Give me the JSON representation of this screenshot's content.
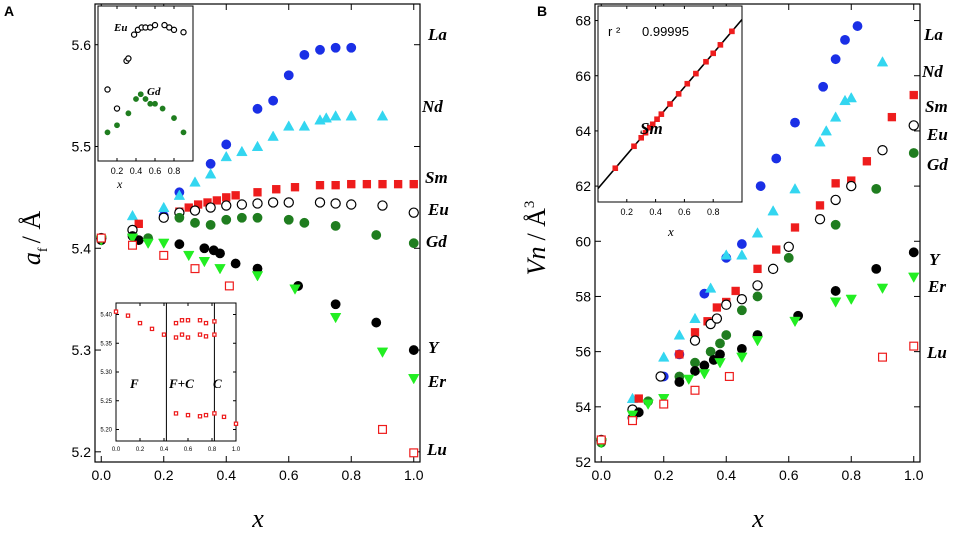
{
  "colors": {
    "La": "#1a2fe6",
    "Nd": "#33d6f0",
    "Sm": "#ee1c1c",
    "Eu": "#000000",
    "Gd": "#1f7d1f",
    "Y": "#000000",
    "Er": "#22ee22",
    "Lu": "#ee1c1c"
  },
  "chart_data": [
    {
      "id": "A",
      "panel_label": "A",
      "type": "scatter",
      "xlabel": "x",
      "ylabel_main": "a",
      "ylabel_sub": "f",
      "ylabel_unit": "/ Å",
      "xlim": [
        -0.02,
        1.02
      ],
      "ylim": [
        5.19,
        5.64
      ],
      "xticks": [
        0.0,
        0.2,
        0.4,
        0.6,
        0.8,
        1.0
      ],
      "xtick_labels": [
        "0.0",
        "0.2",
        "0.4",
        "0.6",
        "0.8",
        "1.0"
      ],
      "yticks": [
        5.2,
        5.3,
        5.4,
        5.5,
        5.6
      ],
      "ytick_labels": [
        "5.2",
        "5.3",
        "5.4",
        "5.5",
        "5.6"
      ],
      "series": [
        {
          "name": "La",
          "marker": "circle",
          "fill": true,
          "color_key": "La",
          "x": [
            0.2,
            0.25,
            0.35,
            0.4,
            0.5,
            0.55,
            0.6,
            0.65,
            0.7,
            0.75,
            0.8
          ],
          "y": [
            5.432,
            5.455,
            5.483,
            5.502,
            5.537,
            5.545,
            5.57,
            5.59,
            5.595,
            5.597,
            5.597
          ]
        },
        {
          "name": "Nd",
          "marker": "triangle-up",
          "fill": true,
          "color_key": "Nd",
          "x": [
            0.1,
            0.2,
            0.25,
            0.3,
            0.35,
            0.4,
            0.45,
            0.5,
            0.55,
            0.6,
            0.65,
            0.7,
            0.72,
            0.75,
            0.8,
            0.9
          ],
          "y": [
            5.432,
            5.44,
            5.452,
            5.465,
            5.473,
            5.49,
            5.495,
            5.5,
            5.51,
            5.52,
            5.52,
            5.526,
            5.528,
            5.53,
            5.53,
            5.53
          ]
        },
        {
          "name": "Sm",
          "marker": "square",
          "fill": true,
          "color_key": "Sm",
          "x": [
            0.12,
            0.25,
            0.28,
            0.31,
            0.34,
            0.37,
            0.4,
            0.43,
            0.5,
            0.56,
            0.62,
            0.7,
            0.75,
            0.8,
            0.85,
            0.9,
            0.95,
            1.0
          ],
          "y": [
            5.424,
            5.436,
            5.44,
            5.443,
            5.445,
            5.447,
            5.45,
            5.452,
            5.455,
            5.458,
            5.46,
            5.462,
            5.462,
            5.463,
            5.463,
            5.463,
            5.463,
            5.463
          ]
        },
        {
          "name": "Eu",
          "marker": "circle",
          "fill": false,
          "color_key": "Eu",
          "x": [
            0.0,
            0.1,
            0.2,
            0.25,
            0.3,
            0.35,
            0.4,
            0.45,
            0.5,
            0.55,
            0.6,
            0.7,
            0.75,
            0.8,
            0.9,
            1.0
          ],
          "y": [
            5.41,
            5.418,
            5.43,
            5.435,
            5.437,
            5.44,
            5.442,
            5.443,
            5.444,
            5.445,
            5.445,
            5.445,
            5.444,
            5.443,
            5.442,
            5.435
          ]
        },
        {
          "name": "Gd",
          "marker": "circle",
          "fill": true,
          "color_key": "Gd",
          "x": [
            0.15,
            0.25,
            0.3,
            0.35,
            0.4,
            0.45,
            0.5,
            0.6,
            0.65,
            0.75,
            0.88,
            1.0
          ],
          "y": [
            5.41,
            5.43,
            5.425,
            5.423,
            5.428,
            5.43,
            5.43,
            5.428,
            5.425,
            5.422,
            5.413,
            5.405
          ]
        },
        {
          "name": "Y",
          "marker": "circle",
          "fill": true,
          "color_key": "Y",
          "x": [
            0.0,
            0.1,
            0.12,
            0.25,
            0.33,
            0.36,
            0.38,
            0.43,
            0.5,
            0.63,
            0.75,
            0.88,
            1.0
          ],
          "y": [
            5.408,
            5.412,
            5.408,
            5.404,
            5.4,
            5.398,
            5.395,
            5.385,
            5.38,
            5.363,
            5.345,
            5.327,
            5.3
          ]
        },
        {
          "name": "Er",
          "marker": "triangle-down",
          "fill": true,
          "color_key": "Er",
          "x": [
            0.0,
            0.1,
            0.15,
            0.2,
            0.28,
            0.33,
            0.38,
            0.5,
            0.62,
            0.75,
            0.9,
            1.0
          ],
          "y": [
            5.408,
            5.41,
            5.405,
            5.405,
            5.393,
            5.387,
            5.38,
            5.373,
            5.36,
            5.332,
            5.298,
            5.272
          ]
        },
        {
          "name": "Lu",
          "marker": "square",
          "fill": false,
          "color_key": "Lu",
          "x": [
            0.0,
            0.1,
            0.2,
            0.3,
            0.41,
            0.9,
            1.0
          ],
          "y": [
            5.41,
            5.403,
            5.393,
            5.38,
            5.363,
            5.222,
            5.199
          ]
        }
      ],
      "series_labels": [
        "La",
        "Nd",
        "Sm",
        "Eu",
        "Gd",
        "Y",
        "Er",
        "Lu"
      ],
      "insets": [
        {
          "id": "A-inset-top",
          "type": "scatter",
          "xlabel": "x",
          "xlim": [
            0.0,
            1.0
          ],
          "xticks": [
            0.2,
            0.4,
            0.6,
            0.8
          ],
          "xtick_labels": [
            "0.2",
            "0.4",
            "0.6",
            "0.8"
          ],
          "labels": [
            "Eu",
            "Gd"
          ],
          "series": [
            {
              "name": "Eu",
              "marker": "circle",
              "fill": false,
              "color_key": "Eu",
              "x": [
                0.1,
                0.2,
                0.3,
                0.32,
                0.38,
                0.42,
                0.46,
                0.5,
                0.55,
                0.6,
                0.7,
                0.75,
                0.8,
                0.9
              ],
              "y": [
                0.7,
                0.62,
                0.82,
                0.83,
                0.93,
                0.95,
                0.96,
                0.96,
                0.96,
                0.97,
                0.97,
                0.96,
                0.95,
                0.94
              ]
            },
            {
              "name": "Gd",
              "marker": "circle",
              "fill": true,
              "color_key": "Gd",
              "x": [
                0.1,
                0.2,
                0.32,
                0.4,
                0.45,
                0.5,
                0.55,
                0.6,
                0.68,
                0.8,
                0.9
              ],
              "y": [
                0.52,
                0.55,
                0.6,
                0.66,
                0.68,
                0.66,
                0.64,
                0.64,
                0.62,
                0.58,
                0.52
              ]
            }
          ]
        },
        {
          "id": "A-inset-bottom",
          "type": "scatter",
          "xlim": [
            0.0,
            1.0
          ],
          "ylim": [
            5.18,
            5.42
          ],
          "xticks": [
            0.0,
            0.2,
            0.4,
            0.6,
            0.8,
            1.0
          ],
          "xtick_labels": [
            "0.0",
            "0.2",
            "0.4",
            "0.6",
            "0.8",
            "1.0"
          ],
          "yticks": [
            5.2,
            5.25,
            5.3,
            5.35,
            5.4
          ],
          "ytick_labels": [
            "5.20",
            "5.25",
            "5.30",
            "5.35",
            "5.40"
          ],
          "region_bounds": [
            0.42,
            0.82
          ],
          "region_labels": [
            "F",
            "F+C",
            "C"
          ],
          "series": [
            {
              "name": "Lu",
              "marker": "square",
              "fill": false,
              "color_key": "Lu",
              "x": [
                0.0,
                0.1,
                0.2,
                0.3,
                0.4,
                0.5,
                0.55,
                0.6,
                0.7,
                0.75,
                0.82,
                0.5,
                0.55,
                0.6,
                0.7,
                0.75,
                0.82,
                0.5,
                0.6,
                0.7,
                0.75,
                0.82,
                0.9,
                1.0
              ],
              "y": [
                5.405,
                5.398,
                5.385,
                5.375,
                5.365,
                5.385,
                5.39,
                5.39,
                5.39,
                5.385,
                5.388,
                5.36,
                5.365,
                5.36,
                5.365,
                5.362,
                5.365,
                5.228,
                5.225,
                5.223,
                5.225,
                5.228,
                5.222,
                5.21
              ]
            }
          ]
        }
      ]
    },
    {
      "id": "B",
      "panel_label": "B",
      "type": "scatter",
      "xlabel": "x",
      "ylabel_main": "Vn",
      "ylabel_unit": "/ Å",
      "ylabel_sup": "3",
      "xlim": [
        -0.02,
        1.02
      ],
      "ylim": [
        52.0,
        68.6
      ],
      "xticks": [
        0.0,
        0.2,
        0.4,
        0.6,
        0.8,
        1.0
      ],
      "xtick_labels": [
        "0.0",
        "0.2",
        "0.4",
        "0.6",
        "0.8",
        "1.0"
      ],
      "yticks": [
        52,
        54,
        56,
        58,
        60,
        62,
        64,
        66,
        68
      ],
      "ytick_labels": [
        "52",
        "54",
        "56",
        "58",
        "60",
        "62",
        "64",
        "66",
        "68"
      ],
      "series": [
        {
          "name": "La",
          "marker": "circle",
          "fill": true,
          "color_key": "La",
          "x": [
            0.1,
            0.2,
            0.25,
            0.33,
            0.4,
            0.45,
            0.51,
            0.56,
            0.62,
            0.71,
            0.75,
            0.78,
            0.82
          ],
          "y": [
            53.6,
            55.1,
            55.9,
            58.1,
            59.4,
            59.9,
            62.0,
            63.0,
            64.3,
            65.6,
            66.6,
            67.3,
            67.8
          ]
        },
        {
          "name": "Nd",
          "marker": "triangle-up",
          "fill": true,
          "color_key": "Nd",
          "x": [
            0.1,
            0.2,
            0.25,
            0.3,
            0.35,
            0.4,
            0.45,
            0.5,
            0.55,
            0.62,
            0.7,
            0.72,
            0.75,
            0.78,
            0.8,
            0.9
          ],
          "y": [
            54.3,
            55.8,
            56.6,
            57.2,
            58.3,
            59.5,
            59.5,
            60.3,
            61.1,
            61.9,
            63.6,
            64.0,
            64.5,
            65.1,
            65.2,
            66.5
          ]
        },
        {
          "name": "Sm",
          "marker": "square",
          "fill": true,
          "color_key": "Sm",
          "x": [
            0.0,
            0.12,
            0.25,
            0.3,
            0.34,
            0.37,
            0.4,
            0.43,
            0.5,
            0.56,
            0.62,
            0.7,
            0.75,
            0.8,
            0.85,
            0.93,
            1.0
          ],
          "y": [
            52.8,
            54.3,
            55.9,
            56.7,
            57.1,
            57.6,
            57.8,
            58.2,
            59.0,
            59.7,
            60.5,
            61.3,
            62.1,
            62.2,
            62.9,
            64.5,
            65.3
          ]
        },
        {
          "name": "Eu",
          "marker": "circle",
          "fill": false,
          "color_key": "Eu",
          "x": [
            0.0,
            0.1,
            0.19,
            0.3,
            0.35,
            0.37,
            0.4,
            0.45,
            0.5,
            0.55,
            0.6,
            0.7,
            0.75,
            0.8,
            0.9,
            1.0
          ],
          "y": [
            52.8,
            53.9,
            55.1,
            56.4,
            57.0,
            57.2,
            57.7,
            57.9,
            58.4,
            59.0,
            59.8,
            60.8,
            61.5,
            62.0,
            63.3,
            64.2
          ]
        },
        {
          "name": "Gd",
          "marker": "circle",
          "fill": true,
          "color_key": "Gd",
          "x": [
            0.0,
            0.15,
            0.25,
            0.3,
            0.35,
            0.38,
            0.4,
            0.45,
            0.5,
            0.6,
            0.75,
            0.88,
            1.0
          ],
          "y": [
            52.7,
            54.2,
            55.1,
            55.6,
            56.0,
            56.3,
            56.6,
            57.5,
            58.0,
            59.4,
            60.6,
            61.9,
            63.2
          ]
        },
        {
          "name": "Y",
          "marker": "circle",
          "fill": true,
          "color_key": "Y",
          "x": [
            0.0,
            0.1,
            0.12,
            0.25,
            0.3,
            0.33,
            0.36,
            0.38,
            0.45,
            0.5,
            0.63,
            0.75,
            0.88,
            1.0
          ],
          "y": [
            52.8,
            53.6,
            53.8,
            54.9,
            55.3,
            55.5,
            55.7,
            55.9,
            56.1,
            56.6,
            57.3,
            58.2,
            59.0,
            59.6
          ]
        },
        {
          "name": "Er",
          "marker": "triangle-down",
          "fill": true,
          "color_key": "Er",
          "x": [
            0.0,
            0.1,
            0.15,
            0.2,
            0.28,
            0.33,
            0.38,
            0.45,
            0.5,
            0.62,
            0.75,
            0.8,
            0.9,
            1.0
          ],
          "y": [
            52.7,
            53.7,
            54.1,
            54.3,
            55.0,
            55.2,
            55.6,
            55.8,
            56.4,
            57.1,
            57.8,
            57.9,
            58.3,
            58.7
          ]
        },
        {
          "name": "Lu",
          "marker": "square",
          "fill": false,
          "color_key": "Lu",
          "x": [
            0.0,
            0.1,
            0.2,
            0.3,
            0.41,
            0.9,
            1.0
          ],
          "y": [
            52.8,
            53.5,
            54.1,
            54.6,
            55.1,
            55.8,
            56.2
          ]
        }
      ],
      "series_labels": [
        "La",
        "Nd",
        "Sm",
        "Eu",
        "Gd",
        "Y",
        "Er",
        "Lu"
      ],
      "insets": [
        {
          "id": "B-inset",
          "type": "scatter",
          "xlabel": "x",
          "label": "Sm",
          "r2_label": "r ²",
          "r2_value": "0.99995",
          "xlim": [
            0.0,
            1.0
          ],
          "xticks": [
            0.2,
            0.4,
            0.6,
            0.8
          ],
          "xtick_labels": [
            "0.2",
            "0.4",
            "0.6",
            "0.8"
          ],
          "fit_line": {
            "x": [
              0.0,
              1.0
            ],
            "y": [
              0.0,
              1.0
            ]
          },
          "series": [
            {
              "name": "Sm",
              "marker": "square",
              "fill": true,
              "color_key": "Sm",
              "x": [
                0.12,
                0.25,
                0.3,
                0.33,
                0.36,
                0.38,
                0.41,
                0.44,
                0.5,
                0.56,
                0.62,
                0.68,
                0.75,
                0.8,
                0.85,
                0.93
              ],
              "y": [
                0.12,
                0.25,
                0.3,
                0.33,
                0.36,
                0.38,
                0.41,
                0.44,
                0.5,
                0.56,
                0.62,
                0.68,
                0.75,
                0.8,
                0.85,
                0.93
              ]
            }
          ]
        }
      ]
    }
  ]
}
